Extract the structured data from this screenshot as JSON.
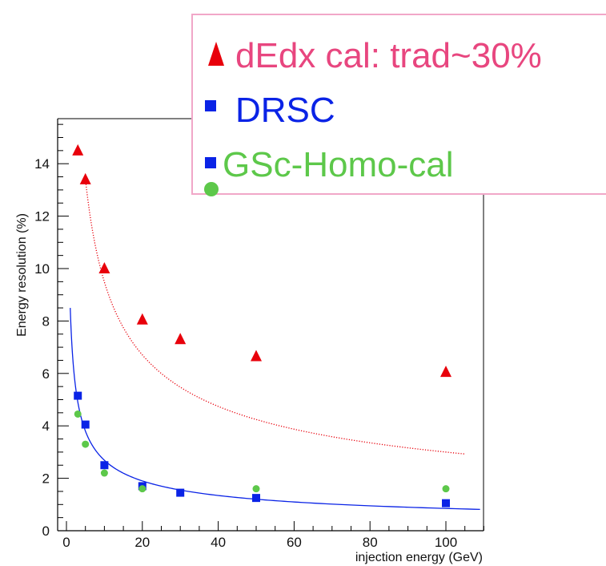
{
  "chart_data": {
    "type": "scatter",
    "xlabel": "injection energy (GeV)",
    "ylabel": "Energy resolution (%)",
    "xlim": [
      -2,
      110
    ],
    "ylim": [
      0,
      15.6
    ],
    "x_ticks": [
      0,
      20,
      40,
      60,
      80,
      100
    ],
    "y_ticks": [
      0,
      2,
      4,
      6,
      8,
      10,
      12,
      14
    ],
    "series": [
      {
        "name": "dEdx cal: trad~30%",
        "marker": "triangle",
        "color": "#e8000b",
        "x": [
          3,
          5,
          10,
          20,
          30,
          50,
          100
        ],
        "y": [
          14.5,
          13.4,
          10.0,
          8.05,
          7.3,
          6.65,
          6.05
        ]
      },
      {
        "name": "DRSC",
        "marker": "square",
        "color": "#0a23e6",
        "x": [
          3,
          5,
          10,
          20,
          30,
          50,
          100
        ],
        "y": [
          5.15,
          4.05,
          2.5,
          1.7,
          1.45,
          1.25,
          1.05
        ]
      },
      {
        "name": "GSc-Homo-cal",
        "marker": "circle",
        "color": "#5dc84a",
        "x": [
          3,
          5,
          10,
          20,
          50,
          100
        ],
        "y": [
          4.45,
          3.3,
          2.2,
          1.6,
          1.6,
          1.6
        ]
      }
    ],
    "fits": [
      {
        "color": "#e8000b",
        "style": "dotted",
        "x_range": [
          5,
          105
        ],
        "a": 30,
        "b": 0
      },
      {
        "color": "#0a23e6",
        "style": "solid",
        "x_range": [
          1,
          109
        ],
        "a": 8.5,
        "b": 0
      }
    ],
    "legend": {
      "placement": "top-right",
      "entries": [
        "dEdx cal: trad~30%",
        "DRSC",
        "GSc-Homo-cal"
      ],
      "colors": [
        "#e8467f",
        "#0a23e6",
        "#5dc84a"
      ],
      "border_color": "#f1a7c8"
    }
  }
}
